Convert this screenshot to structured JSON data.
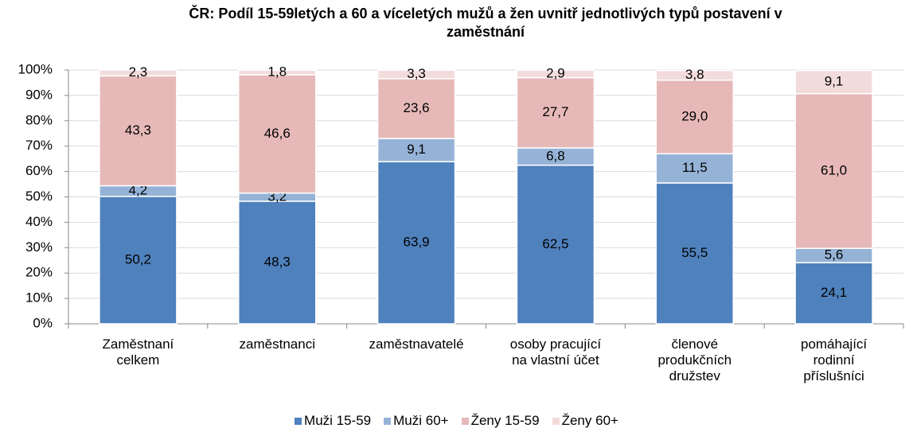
{
  "chart_data": {
    "type": "stacked_bar",
    "title": "ČR: Podíl 15-59letých a 60 a víceletých mužů a žen uvnitř jednotlivých typů postavení v zaměstnání",
    "categories": [
      "Zaměstnaní celkem",
      "zaměstnanci",
      "zaměstnavatelé",
      "osoby pracující na vlastní účet",
      "členové produkčních družstev",
      "pomáhající rodinní příslušníci"
    ],
    "series": [
      {
        "name": "Muži 15-59",
        "color": "#4f81bd",
        "values": [
          50.2,
          48.3,
          63.9,
          62.5,
          55.5,
          24.1
        ],
        "value_labels": [
          "50,2",
          "48,3",
          "63,9",
          "62,5",
          "55,5",
          "24,1"
        ]
      },
      {
        "name": "Muži 60+",
        "color": "#95b3d7",
        "values": [
          4.2,
          3.2,
          9.1,
          6.8,
          11.5,
          5.6
        ],
        "value_labels": [
          "4,2",
          "3,2",
          "9,1",
          "6,8",
          "11,5",
          "5,6"
        ]
      },
      {
        "name": "Ženy 15-59",
        "color": "#e6b9b8",
        "values": [
          43.3,
          46.6,
          23.6,
          27.7,
          29.0,
          61.0
        ],
        "value_labels": [
          "43,3",
          "46,6",
          "23,6",
          "27,7",
          "29,0",
          "61,0"
        ]
      },
      {
        "name": "Ženy 60+",
        "color": "#f2dcdb",
        "values": [
          2.3,
          1.8,
          3.3,
          2.9,
          3.8,
          9.1
        ],
        "value_labels": [
          "2,3",
          "1,8",
          "3,3",
          "2,9",
          "3,8",
          "9,1"
        ]
      }
    ],
    "ylim": [
      0,
      100
    ],
    "yticks": [
      {
        "value": 0,
        "label": "0%"
      },
      {
        "value": 10,
        "label": "10%"
      },
      {
        "value": 20,
        "label": "20%"
      },
      {
        "value": 30,
        "label": "30%"
      },
      {
        "value": 40,
        "label": "40%"
      },
      {
        "value": 50,
        "label": "50%"
      },
      {
        "value": 60,
        "label": "60%"
      },
      {
        "value": 70,
        "label": "70%"
      },
      {
        "value": 80,
        "label": "80%"
      },
      {
        "value": 90,
        "label": "90%"
      },
      {
        "value": 100,
        "label": "100%"
      }
    ],
    "grid": true,
    "legend": "bottom"
  }
}
